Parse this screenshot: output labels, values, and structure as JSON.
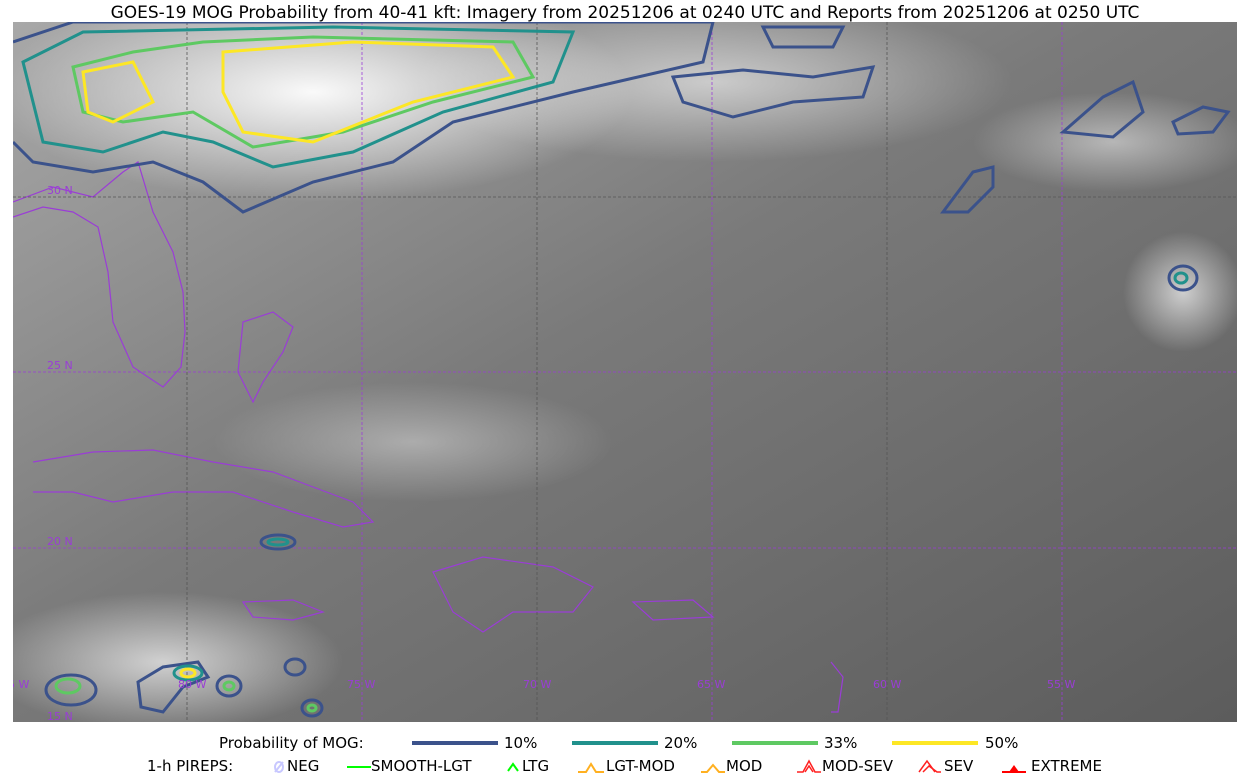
{
  "title": "GOES-19 MOG Probability from 40-41 kft: Imagery from 20251206 at 0240 UTC and Reports from 20251206 at 0250 UTC",
  "map": {
    "longitude_labels": [
      "85 W",
      "80 W",
      "75 W",
      "70 W",
      "65 W",
      "60 W",
      "55 W"
    ],
    "latitude_labels": [
      "30 N",
      "25 N",
      "20 N",
      "15 N"
    ],
    "coastline_color": "#9a3dd6",
    "gridline_color": "#9a3dd6"
  },
  "legend": {
    "probability_title": "Probability of MOG:",
    "probability_levels": [
      {
        "label": "10%",
        "color": "#3b528b"
      },
      {
        "label": "20%",
        "color": "#21918c"
      },
      {
        "label": "33%",
        "color": "#5ec962"
      },
      {
        "label": "50%",
        "color": "#fde725"
      }
    ],
    "pireps_title": "1-h PIREPS:",
    "pireps": [
      {
        "label": "NEG",
        "color": "#c8c8ff",
        "icon": "neg-icon"
      },
      {
        "label": "SMOOTH-LGT",
        "color": "#00ff00",
        "icon": "line-icon"
      },
      {
        "label": "LTG",
        "color": "#00ff00",
        "icon": "caret-icon"
      },
      {
        "label": "LGT-MOD",
        "color": "#ffb020",
        "icon": "hat-icon"
      },
      {
        "label": "MOD",
        "color": "#ffb020",
        "icon": "caret-icon"
      },
      {
        "label": "MOD-SEV",
        "color": "#ff2020",
        "icon": "double-hat-icon"
      },
      {
        "label": "SEV",
        "color": "#ff2020",
        "icon": "double-caret-icon"
      },
      {
        "label": "EXTREME",
        "color": "#ff0000",
        "icon": "filled-triangle-icon"
      }
    ]
  }
}
